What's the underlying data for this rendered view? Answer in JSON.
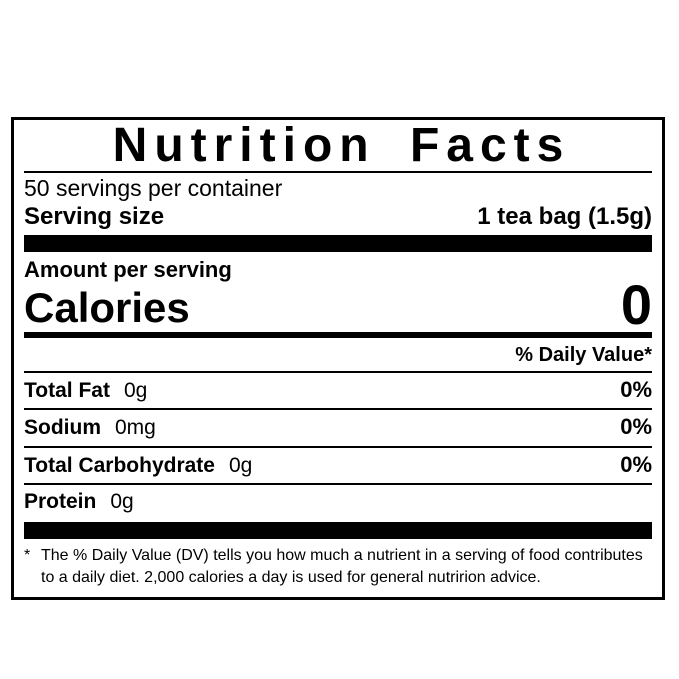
{
  "label": {
    "title": "Nutrition Facts",
    "servings_per_container": "50 servings per container",
    "serving_size_label": "Serving size",
    "serving_size_value": "1 tea bag (1.5g)",
    "amount_per_serving": "Amount per serving",
    "calories_label": "Calories",
    "calories_value": "0",
    "daily_value_header": "% Daily Value*",
    "nutrients": [
      {
        "name": "Total Fat",
        "amount": "0g",
        "dv": "0%"
      },
      {
        "name": "Sodium",
        "amount": "0mg",
        "dv": "0%"
      },
      {
        "name": "Total Carbohydrate",
        "amount": "0g",
        "dv": "0%"
      },
      {
        "name": "Protein",
        "amount": "0g",
        "dv": ""
      }
    ],
    "footnote_marker": "*",
    "footnote_text": "The % Daily Value (DV) tells you how much a nutrient in a serving of food contributes to a daily diet. 2,000 calories a day is used for general nutririon advice.",
    "colors": {
      "text": "#000000",
      "background": "#ffffff"
    }
  }
}
